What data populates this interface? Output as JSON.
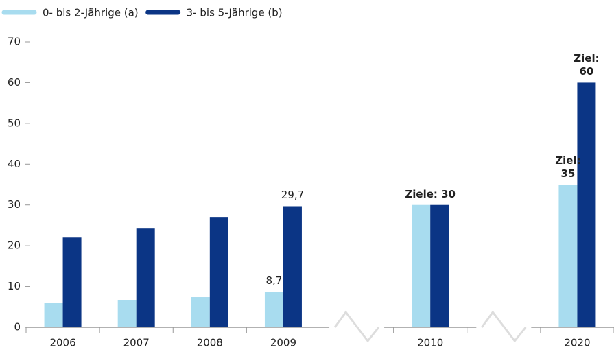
{
  "chart_data": {
    "type": "bar",
    "categories": [
      "2006",
      "2007",
      "2008",
      "2009",
      null,
      "2010",
      null,
      "2020"
    ],
    "series": [
      {
        "name": "0- bis 2-Jährige (a)",
        "color": "#a8dcef",
        "values": [
          6,
          6.6,
          7.4,
          8.7,
          null,
          30,
          null,
          35
        ],
        "value_labels": [
          null,
          null,
          null,
          "8,7",
          null,
          null,
          null,
          "Ziel: 35"
        ]
      },
      {
        "name": "3- bis 5-Jährige (b)",
        "color": "#0b3585",
        "values": [
          22,
          24.2,
          26.9,
          29.7,
          null,
          30,
          null,
          60
        ],
        "value_labels": [
          null,
          null,
          null,
          "29,7",
          null,
          "Ziele: 30",
          null,
          "Ziel: 60"
        ]
      }
    ],
    "ylim": [
      0,
      70
    ],
    "yticks": [
      0,
      10,
      20,
      30,
      40,
      50,
      60,
      70
    ],
    "legend": "top-left"
  }
}
